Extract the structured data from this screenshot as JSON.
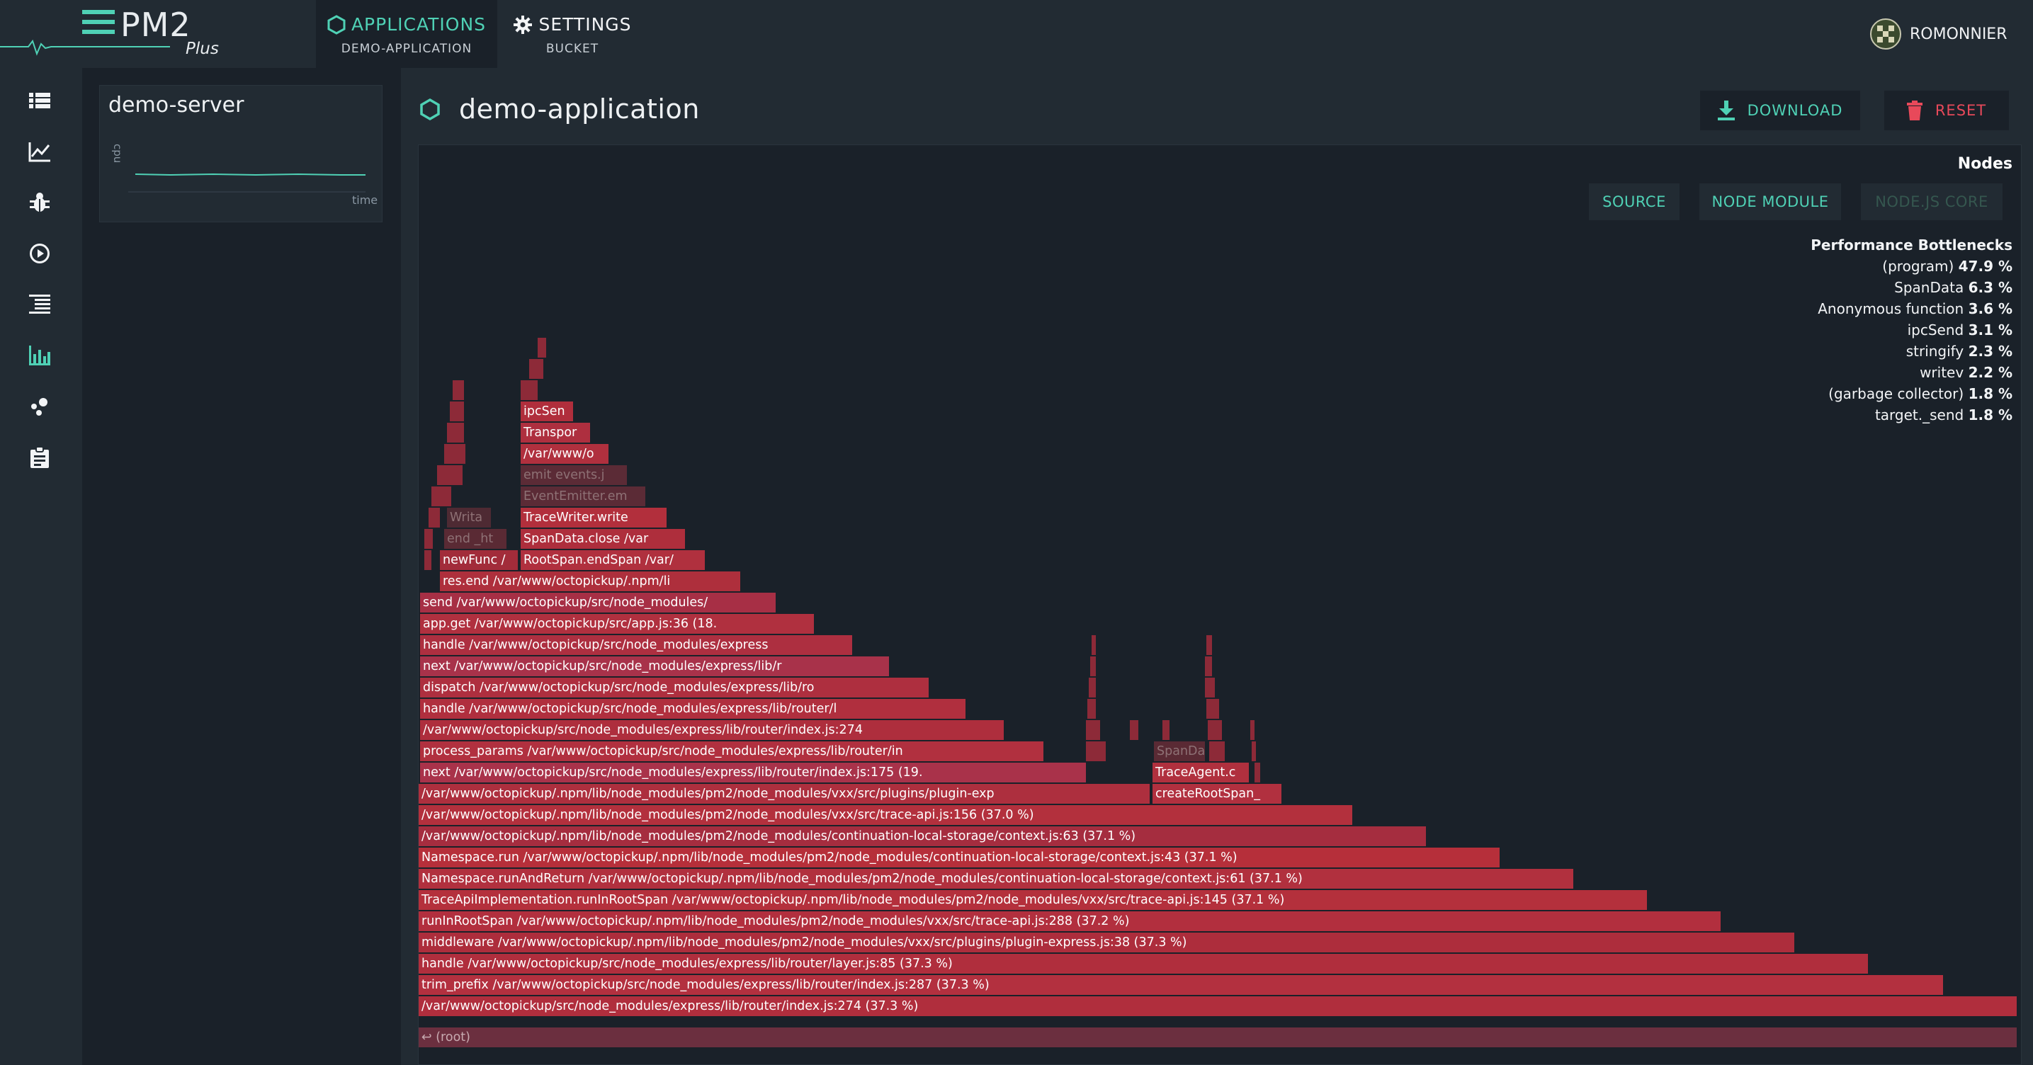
{
  "header": {
    "logo_text": "PM2",
    "logo_sub": "Plus",
    "nav": [
      {
        "label": "APPLICATIONS",
        "sub": "DEMO-APPLICATION"
      },
      {
        "label": "SETTINGS",
        "sub": "BUCKET"
      }
    ],
    "user": "ROMONNIER"
  },
  "sidebar": {
    "icons": [
      "list-icon",
      "chart-line-icon",
      "bug-icon",
      "play-circle-icon",
      "logs-icon",
      "bar-chart-icon",
      "dependencies-icon",
      "clipboard-icon"
    ],
    "active_index": 5
  },
  "server": {
    "name": "demo-server",
    "axis_y": "cpu",
    "axis_x": "time"
  },
  "main": {
    "title": "demo-application",
    "download_label": "DOWNLOAD",
    "reset_label": "RESET"
  },
  "profile": {
    "nodes_label": "Nodes",
    "filters": [
      "SOURCE",
      "NODE MODULE",
      "NODE.JS CORE"
    ],
    "bottlenecks_title": "Performance Bottlenecks",
    "bottlenecks": [
      {
        "name": "(program)",
        "pct": "47.9 %"
      },
      {
        "name": "SpanData",
        "pct": "6.3 %"
      },
      {
        "name": "Anonymous function",
        "pct": "3.6 %"
      },
      {
        "name": "ipcSend",
        "pct": "3.1 %"
      },
      {
        "name": "stringify",
        "pct": "2.3 %"
      },
      {
        "name": "writev",
        "pct": "2.2 %"
      },
      {
        "name": "(garbage collector)",
        "pct": "1.8 %"
      },
      {
        "name": "target._send",
        "pct": "1.8 %"
      }
    ],
    "root_label": "↩ (root)",
    "frames": [
      {
        "text": "/var/www/octopickup/src/node_modules/express/lib/router/index.js:274 (37.3 %)",
        "color": "#b02e3d"
      },
      {
        "text": "trim_prefix /var/www/octopickup/src/node_modules/express/lib/router/index.js:287 (37.3 %)",
        "color": "#b3303f"
      },
      {
        "text": "handle /var/www/octopickup/src/node_modules/express/lib/router/layer.js:85 (37.3 %)",
        "color": "#b02e3d"
      },
      {
        "text": "middleware /var/www/octopickup/.npm/lib/node_modules/pm2/node_modules/vxx/src/plugins/plugin-express.js:38 (37.3 %)",
        "color": "#ad2d3c"
      },
      {
        "text": "runInRootSpan /var/www/octopickup/.npm/lib/node_modules/pm2/node_modules/vxx/src/trace-api.js:288 (37.2 %)",
        "color": "#b22f3e"
      },
      {
        "text": "TraceApiImplementation.runInRootSpan /var/www/octopickup/.npm/lib/node_modules/pm2/node_modules/vxx/src/trace-api.js:145 (37.1 %)",
        "color": "#b4303c"
      },
      {
        "text": "Namespace.runAndReturn /var/www/octopickup/.npm/lib/node_modules/pm2/node_modules/continuation-local-storage/context.js:61 (37.1 %)",
        "color": "#b1303e"
      },
      {
        "text": "Namespace.run /var/www/octopickup/.npm/lib/node_modules/pm2/node_modules/continuation-local-storage/context.js:43 (37.1 %)",
        "color": "#b62f3a"
      },
      {
        "text": "/var/www/octopickup/.npm/lib/node_modules/pm2/node_modules/continuation-local-storage/context.js:63 (37.1 %)",
        "color": "#a52d3f"
      },
      {
        "text": "/var/www/octopickup/.npm/lib/node_modules/pm2/node_modules/vxx/src/trace-api.js:156 (37.0 %)",
        "color": "#b3303d"
      },
      {
        "text": "/var/www/octopickup/.npm/lib/node_modules/pm2/node_modules/vxx/src/plugins/plugin-exp",
        "color": "#ad2f3e"
      },
      {
        "text": "next /var/www/octopickup/src/node_modules/express/lib/router/index.js:175 (19.",
        "color": "#a9324a"
      },
      {
        "text": "process_params /var/www/octopickup/src/node_modules/express/lib/router/in",
        "color": "#b1303f"
      },
      {
        "text": "/var/www/octopickup/src/node_modules/express/lib/router/index.js:274",
        "color": "#ae2e3d"
      },
      {
        "text": "handle /var/www/octopickup/src/node_modules/express/lib/router/l",
        "color": "#b02f3e"
      },
      {
        "text": "dispatch /var/www/octopickup/src/node_modules/express/lib/ro",
        "color": "#ae2f3f"
      },
      {
        "text": "next /var/www/octopickup/src/node_modules/express/lib/r",
        "color": "#a8324a"
      },
      {
        "text": "handle /var/www/octopickup/src/node_modules/express",
        "color": "#ad2f40"
      },
      {
        "text": "app.get /var/www/octopickup/src/app.js:36 (18.",
        "color": "#b0303f"
      },
      {
        "text": "send /var/www/octopickup/src/node_modules/",
        "color": "#a72f45"
      },
      {
        "text": "res.end /var/www/octopickup/.npm/li",
        "color": "#ae2f3c"
      },
      {
        "text": "newFunc /",
        "color": "#a22c3a"
      },
      {
        "text": "end _ht",
        "color": "#5a2a34"
      },
      {
        "text": "Writa",
        "color": "#4e2a33"
      },
      {
        "text": "RootSpan.endSpan /var/",
        "color": "#b0303e"
      },
      {
        "text": "SpanData.close /var",
        "color": "#ae2e3c"
      },
      {
        "text": "TraceWriter.write",
        "color": "#b22f3c"
      },
      {
        "text": "EventEmitter.em",
        "color": "#5b2b36"
      },
      {
        "text": "emit events.j",
        "color": "#5b2b36"
      },
      {
        "text": "/var/www/o",
        "color": "#b0303e"
      },
      {
        "text": "Transpor",
        "color": "#ae2f3f"
      },
      {
        "text": "ipcSen",
        "color": "#b02e3c"
      },
      {
        "text": "SpanDa",
        "color": "#5a2a34"
      },
      {
        "text": "TraceAgent.c",
        "color": "#b0303e"
      },
      {
        "text": "createRootSpan_",
        "color": "#b1303f"
      }
    ]
  }
}
